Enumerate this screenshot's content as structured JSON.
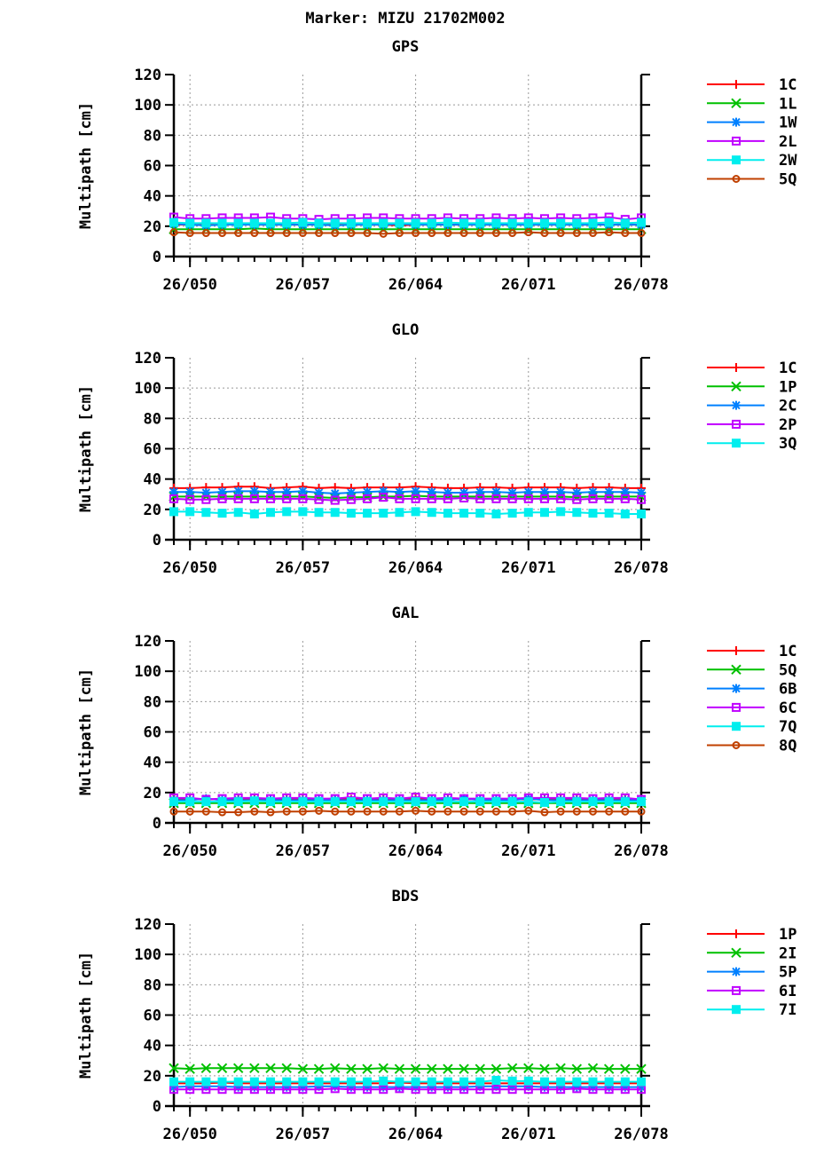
{
  "title": "Marker: MIZU 21702M002",
  "colors": {
    "red": "#ff0000",
    "green": "#00c000",
    "blue": "#0080ff",
    "purple": "#c000ff",
    "cyan": "#00eeee",
    "brown": "#c04000"
  },
  "chart_data": [
    {
      "type": "line",
      "title": "GPS",
      "ylabel": "Multipath [cm]",
      "ylim": [
        0,
        120
      ],
      "yticks": [
        "0",
        "20",
        "40",
        "60",
        "80",
        "100",
        "120"
      ],
      "xlim": [
        "26/049",
        "26/078"
      ],
      "xtick_labels": [
        "26/050",
        "26/057",
        "26/064",
        "26/071",
        "26/078"
      ],
      "x": [
        "26/049",
        "26/050",
        "26/051",
        "26/052",
        "26/053",
        "26/054",
        "26/055",
        "26/056",
        "26/057",
        "26/058",
        "26/059",
        "26/060",
        "26/061",
        "26/062",
        "26/063",
        "26/064",
        "26/065",
        "26/066",
        "26/067",
        "26/068",
        "26/069",
        "26/070",
        "26/071",
        "26/072",
        "26/073",
        "26/074",
        "26/075",
        "26/076",
        "26/077",
        "26/078"
      ],
      "grid": true,
      "legend": "right",
      "series": [
        {
          "name": "1C",
          "color": "#ff0000",
          "marker": "plus",
          "values": [
            21,
            21,
            21,
            21,
            21.5,
            21,
            21,
            21,
            21,
            21,
            21,
            21,
            21,
            21,
            20.5,
            21,
            21,
            21,
            21,
            21,
            21,
            21,
            21,
            21,
            21,
            21,
            21,
            21,
            21,
            21
          ]
        },
        {
          "name": "1L",
          "color": "#00c000",
          "marker": "cross",
          "values": [
            18,
            18,
            18,
            18,
            18,
            18.5,
            18,
            18,
            18,
            18,
            18,
            18,
            18,
            18,
            18,
            18,
            18,
            18,
            18,
            18,
            18,
            18,
            18,
            18,
            18,
            18,
            18,
            18,
            18,
            18
          ]
        },
        {
          "name": "1W",
          "color": "#0080ff",
          "marker": "star",
          "values": [
            21.5,
            21,
            20.5,
            21,
            21,
            21,
            21,
            21,
            21,
            21,
            20.5,
            21,
            21,
            21,
            21.5,
            21,
            21,
            21,
            21,
            21,
            21,
            21,
            21,
            21,
            21,
            21,
            21,
            21,
            21,
            21
          ]
        },
        {
          "name": "2L",
          "color": "#c000ff",
          "marker": "square-open",
          "values": [
            26,
            25,
            25,
            25.5,
            25.5,
            25.5,
            26,
            25,
            25,
            24.5,
            25,
            25,
            25.5,
            25.5,
            25,
            25,
            25,
            25.5,
            25,
            25,
            25.5,
            25,
            25.5,
            25,
            25.5,
            25,
            25.5,
            26,
            24.5,
            25.5
          ]
        },
        {
          "name": "2W",
          "color": "#00eeee",
          "marker": "square-filled",
          "values": [
            22.5,
            22,
            22,
            22,
            22,
            22,
            22,
            22,
            22.5,
            22,
            22,
            22,
            22,
            22,
            22,
            22,
            22,
            22.5,
            22,
            22,
            22,
            22,
            22,
            22,
            22,
            22,
            22,
            22.5,
            22,
            22.5
          ]
        },
        {
          "name": "5Q",
          "color": "#c04000",
          "marker": "circle-open",
          "values": [
            16,
            15.5,
            15.5,
            15.5,
            15.5,
            15.5,
            15.5,
            15.5,
            15.5,
            15.5,
            15.5,
            15.5,
            15.5,
            15,
            15.5,
            15.5,
            15.5,
            15.5,
            15.5,
            15.5,
            15.5,
            15.5,
            16,
            15.5,
            15.5,
            15.5,
            15.5,
            16,
            15.5,
            15.5
          ]
        }
      ]
    },
    {
      "type": "line",
      "title": "GLO",
      "ylabel": "Multipath [cm]",
      "ylim": [
        0,
        120
      ],
      "yticks": [
        "0",
        "20",
        "40",
        "60",
        "80",
        "100",
        "120"
      ],
      "xlim": [
        "26/049",
        "26/078"
      ],
      "xtick_labels": [
        "26/050",
        "26/057",
        "26/064",
        "26/071",
        "26/078"
      ],
      "x": [
        "26/049",
        "26/050",
        "26/051",
        "26/052",
        "26/053",
        "26/054",
        "26/055",
        "26/056",
        "26/057",
        "26/058",
        "26/059",
        "26/060",
        "26/061",
        "26/062",
        "26/063",
        "26/064",
        "26/065",
        "26/066",
        "26/067",
        "26/068",
        "26/069",
        "26/070",
        "26/071",
        "26/072",
        "26/073",
        "26/074",
        "26/075",
        "26/076",
        "26/077",
        "26/078"
      ],
      "grid": true,
      "legend": "right",
      "series": [
        {
          "name": "1C",
          "color": "#ff0000",
          "marker": "plus",
          "values": [
            34,
            34,
            34.5,
            34.5,
            35,
            35,
            34,
            34.5,
            35,
            34,
            34.5,
            34,
            34.5,
            34.5,
            34.5,
            35,
            34.5,
            34,
            34,
            34.5,
            34.5,
            34,
            34.5,
            34.5,
            34.5,
            34,
            34.5,
            34.5,
            34,
            34
          ]
        },
        {
          "name": "1P",
          "color": "#00c000",
          "marker": "cross",
          "values": [
            28.5,
            28.5,
            28.5,
            28.5,
            28.5,
            28.5,
            28.5,
            28.5,
            28.5,
            28,
            27.5,
            28,
            28,
            28.5,
            28.5,
            29,
            28.5,
            28.5,
            28.5,
            28.5,
            28.5,
            28.5,
            28.5,
            28.5,
            28.5,
            28,
            28.5,
            28.5,
            28.5,
            28.5
          ]
        },
        {
          "name": "2C",
          "color": "#0080ff",
          "marker": "star",
          "values": [
            31.5,
            31.5,
            31,
            31.5,
            32,
            32,
            31.5,
            31.5,
            32,
            31,
            30.5,
            31,
            31.5,
            32,
            31.5,
            32,
            31.5,
            31,
            31,
            31.5,
            31.5,
            31,
            31.5,
            31.5,
            31.5,
            31,
            31.5,
            31.5,
            31.5,
            31
          ]
        },
        {
          "name": "2P",
          "color": "#c000ff",
          "marker": "square-open",
          "values": [
            27,
            26.5,
            26.5,
            27,
            27,
            27,
            27,
            27,
            27,
            26.5,
            26,
            26.5,
            27,
            28,
            27,
            27,
            27,
            27,
            27.5,
            27,
            27,
            27,
            27,
            27,
            27,
            26.5,
            27,
            27,
            27,
            26.5
          ]
        },
        {
          "name": "3Q",
          "color": "#00eeee",
          "marker": "square-filled",
          "values": [
            18.5,
            18.5,
            18,
            17.5,
            18,
            17,
            18,
            18.5,
            18.5,
            18,
            18,
            17.5,
            17.5,
            17.5,
            18,
            18.5,
            18,
            17.5,
            17.5,
            17.5,
            17,
            17.5,
            18,
            18,
            18.5,
            18,
            17.5,
            17.5,
            17,
            17
          ]
        }
      ]
    },
    {
      "type": "line",
      "title": "GAL",
      "ylabel": "Multipath [cm]",
      "ylim": [
        0,
        120
      ],
      "yticks": [
        "0",
        "20",
        "40",
        "60",
        "80",
        "100",
        "120"
      ],
      "xlim": [
        "26/049",
        "26/078"
      ],
      "xtick_labels": [
        "26/050",
        "26/057",
        "26/064",
        "26/071",
        "26/078"
      ],
      "x": [
        "26/049",
        "26/050",
        "26/051",
        "26/052",
        "26/053",
        "26/054",
        "26/055",
        "26/056",
        "26/057",
        "26/058",
        "26/059",
        "26/060",
        "26/061",
        "26/062",
        "26/063",
        "26/064",
        "26/065",
        "26/066",
        "26/067",
        "26/068",
        "26/069",
        "26/070",
        "26/071",
        "26/072",
        "26/073",
        "26/074",
        "26/075",
        "26/076",
        "26/077",
        "26/078"
      ],
      "grid": true,
      "legend": "right",
      "series": [
        {
          "name": "1C",
          "color": "#ff0000",
          "marker": "plus",
          "values": [
            15.5,
            15.5,
            15.5,
            15.5,
            15.5,
            15.5,
            15.5,
            15.5,
            15.5,
            15.5,
            15.5,
            15.5,
            15.5,
            15.5,
            15.5,
            16,
            15.5,
            15.5,
            15.5,
            15.5,
            15.5,
            15.5,
            15.5,
            15.5,
            15.5,
            15.5,
            15.5,
            15.5,
            15.5,
            15.5
          ]
        },
        {
          "name": "5Q",
          "color": "#00c000",
          "marker": "cross",
          "values": [
            13,
            13,
            13,
            13,
            13,
            13,
            13,
            13,
            13,
            13,
            13,
            13,
            13,
            13,
            13,
            13,
            13,
            13,
            13,
            13,
            13,
            13,
            13,
            13,
            13,
            13,
            13,
            13,
            13,
            13
          ]
        },
        {
          "name": "6B",
          "color": "#0080ff",
          "marker": "star",
          "values": [
            15,
            15,
            16,
            15,
            15,
            15,
            15,
            15,
            15,
            15,
            15,
            15,
            15,
            15,
            15,
            15,
            15,
            15,
            16,
            15,
            15,
            15,
            16,
            15,
            15,
            15,
            15,
            15,
            15,
            15
          ]
        },
        {
          "name": "6C",
          "color": "#c000ff",
          "marker": "square-open",
          "values": [
            16.5,
            16.5,
            15.5,
            16,
            16.5,
            16.5,
            16,
            16.5,
            16.5,
            16,
            16,
            17,
            16,
            16.5,
            16,
            17,
            16,
            16.5,
            16,
            16,
            16,
            16,
            16.5,
            16.5,
            16.5,
            16.5,
            16,
            16.5,
            16.5,
            15.5
          ]
        },
        {
          "name": "7Q",
          "color": "#00eeee",
          "marker": "square-filled",
          "values": [
            14,
            14,
            14,
            14,
            14,
            14.5,
            14,
            14,
            14,
            14,
            14,
            14,
            14,
            14,
            14,
            14,
            14,
            14,
            14,
            14,
            14,
            14,
            14,
            13.5,
            14,
            14,
            14,
            14,
            14,
            14
          ]
        },
        {
          "name": "8Q",
          "color": "#c04000",
          "marker": "circle-open",
          "values": [
            7.5,
            7.5,
            7.5,
            7,
            7,
            7.5,
            7,
            7.5,
            7.5,
            8,
            7.5,
            7.5,
            7.5,
            7.5,
            7.5,
            8,
            7.5,
            7.5,
            7.5,
            7.5,
            7.5,
            7.5,
            8,
            7,
            7.5,
            7.5,
            7.5,
            7.5,
            7.5,
            7.5
          ]
        }
      ]
    },
    {
      "type": "line",
      "title": "BDS",
      "ylabel": "Multipath [cm]",
      "ylim": [
        0,
        120
      ],
      "yticks": [
        "0",
        "20",
        "40",
        "60",
        "80",
        "100",
        "120"
      ],
      "xlim": [
        "26/049",
        "26/078"
      ],
      "xtick_labels": [
        "26/050",
        "26/057",
        "26/064",
        "26/071",
        "26/078"
      ],
      "x": [
        "26/049",
        "26/050",
        "26/051",
        "26/052",
        "26/053",
        "26/054",
        "26/055",
        "26/056",
        "26/057",
        "26/058",
        "26/059",
        "26/060",
        "26/061",
        "26/062",
        "26/063",
        "26/064",
        "26/065",
        "26/066",
        "26/067",
        "26/068",
        "26/069",
        "26/070",
        "26/071",
        "26/072",
        "26/073",
        "26/074",
        "26/075",
        "26/076",
        "26/077",
        "26/078"
      ],
      "grid": true,
      "legend": "right",
      "series": [
        {
          "name": "1P",
          "color": "#ff0000",
          "marker": "plus",
          "values": [
            15,
            15,
            15,
            15.5,
            15,
            15,
            15,
            15,
            15,
            15,
            15,
            15,
            15,
            15,
            15.5,
            15,
            15,
            15,
            15,
            15,
            15,
            15,
            15,
            15,
            15,
            15,
            15,
            15,
            15,
            15
          ]
        },
        {
          "name": "2I",
          "color": "#00c000",
          "marker": "cross",
          "values": [
            25,
            24.5,
            25,
            25,
            25,
            25,
            25,
            25,
            24.5,
            24.5,
            25,
            24.5,
            24.5,
            25,
            24.5,
            24.5,
            24.5,
            24.5,
            24.5,
            24.5,
            24.5,
            25,
            25,
            24.5,
            25,
            24.5,
            25,
            24.5,
            24.5,
            24.5
          ]
        },
        {
          "name": "5P",
          "color": "#0080ff",
          "marker": "star",
          "values": [
            12.5,
            13,
            13,
            13,
            12.5,
            12.5,
            12.5,
            12.5,
            12.5,
            13,
            13,
            12.5,
            12.5,
            12.5,
            12.5,
            12.5,
            12.5,
            12.5,
            12.5,
            13,
            13,
            13,
            13,
            12.5,
            12.5,
            12.5,
            12.5,
            12.5,
            12.5,
            12.5
          ]
        },
        {
          "name": "6I",
          "color": "#c000ff",
          "marker": "square-open",
          "values": [
            11,
            11,
            11,
            11,
            11,
            11,
            11,
            11,
            11,
            11,
            11.5,
            11,
            11,
            11,
            11.5,
            11,
            11,
            11,
            11,
            11,
            11,
            11,
            11,
            11,
            11,
            11.5,
            11,
            11,
            11,
            11
          ]
        },
        {
          "name": "7I",
          "color": "#00eeee",
          "marker": "square-filled",
          "values": [
            16,
            16,
            16,
            16,
            16,
            16,
            16,
            16,
            16,
            16,
            16,
            16,
            16,
            16.5,
            16,
            16,
            16,
            16,
            16,
            16,
            17,
            16.5,
            16.5,
            16,
            16,
            16,
            16,
            16,
            16,
            16
          ]
        }
      ]
    }
  ]
}
